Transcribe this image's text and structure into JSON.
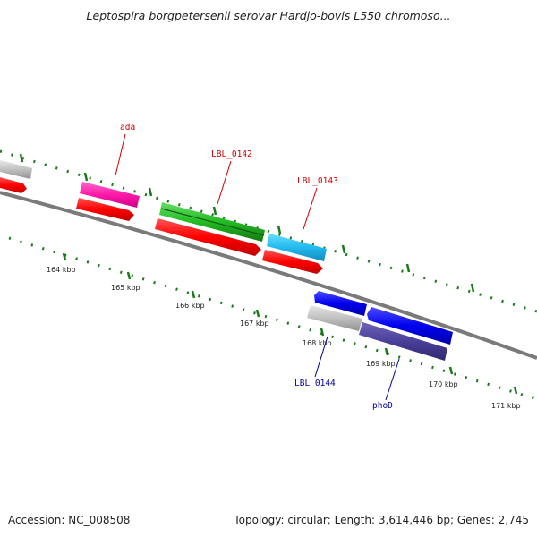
{
  "title": "Leptospira borgpetersenii serovar Hardjo-bovis L550 chromoso...",
  "footer": {
    "accession": "Accession: NC_008508",
    "summary": "Topology: circular; Length: 3,614,446 bp; Genes: 2,745"
  },
  "ruler": {
    "labels": [
      "164 kbp",
      "165 kbp",
      "166 kbp",
      "167 kbp",
      "168 kbp",
      "169 kbp",
      "170 kbp",
      "171 kbp"
    ]
  },
  "genes": [
    {
      "name": "ada",
      "color": "#cc0000"
    },
    {
      "name": "LBL_0142",
      "color": "#cc0000"
    },
    {
      "name": "LBL_0143",
      "color": "#cc0000"
    },
    {
      "name": "LBL_0144",
      "color": "#000099"
    },
    {
      "name": "phoD",
      "color": "#000099"
    }
  ],
  "colors": {
    "backbone": "#808080",
    "tick": "#1a7a1a",
    "cds_forward": "#ff0000",
    "cds_reverse": "#0000ee",
    "rrna_like": "#ff1aa8",
    "trna_like": "#22bb22",
    "cyan_feature": "#22bbee",
    "gray_feature": "#c0c0c0",
    "purple_feature": "#4a3f99"
  }
}
